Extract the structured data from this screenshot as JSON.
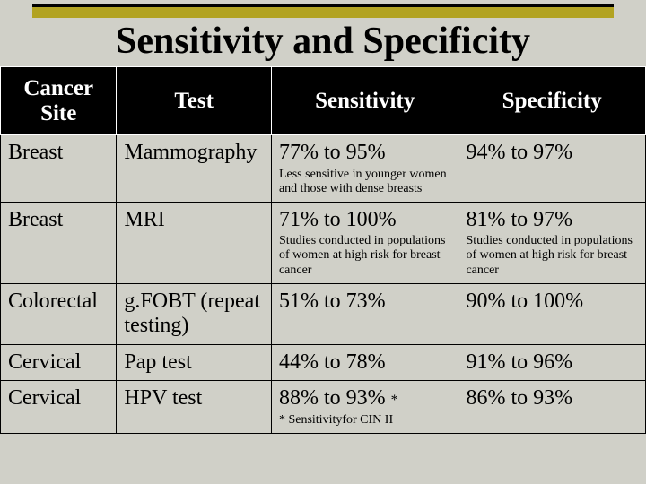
{
  "title": "Sensitivity and Specificity",
  "columns": [
    "Cancer Site",
    "Test",
    "Sensitivity",
    "Specificity"
  ],
  "rows": [
    {
      "site": "Breast",
      "test": "Mammography",
      "sens": "77% to 95%",
      "sens_note": "Less sensitive in younger women and those with dense breasts",
      "spec": "94% to 97%",
      "spec_note": ""
    },
    {
      "site": "Breast",
      "test": "MRI",
      "sens": "71% to 100%",
      "sens_note": "Studies conducted in populations of women at high risk for breast cancer",
      "spec": "81% to 97%",
      "spec_note": "Studies conducted in populations of women at high risk for breast cancer"
    },
    {
      "site": "Colorectal",
      "test": "g.FOBT (repeat testing)",
      "sens": "51% to 73%",
      "sens_note": "",
      "spec": "90% to 100%",
      "spec_note": ""
    },
    {
      "site": "Cervical",
      "test": "Pap test",
      "sens": "44% to 78%",
      "sens_note": "",
      "spec": "91% to 96%",
      "spec_note": ""
    },
    {
      "site": "Cervical",
      "test": "HPV test",
      "sens": "88% to 93% ",
      "sens_aster": "*",
      "sens_note": "* Sensitivityfor CIN II",
      "spec": "86% to 93%",
      "spec_note": ""
    }
  ],
  "colors": {
    "background": "#d0d0c8",
    "gold_bar": "#b2a322",
    "header_bg": "#000000",
    "header_text": "#ffffff",
    "cell_text": "#000000",
    "border": "#000000"
  }
}
